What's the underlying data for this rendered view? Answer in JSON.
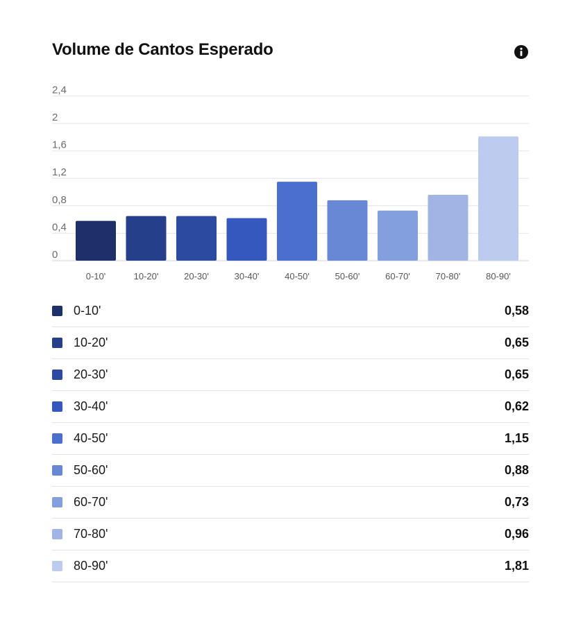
{
  "header": {
    "title": "Volume de Cantos Esperado",
    "info_icon": "info-icon"
  },
  "chart_data": {
    "type": "bar",
    "categories": [
      "0-10'",
      "10-20'",
      "20-30'",
      "30-40'",
      "40-50'",
      "50-60'",
      "60-70'",
      "70-80'",
      "80-90'"
    ],
    "values": [
      0.58,
      0.65,
      0.65,
      0.62,
      1.15,
      0.88,
      0.73,
      0.96,
      1.81
    ],
    "value_labels": [
      "0,58",
      "0,65",
      "0,65",
      "0,62",
      "1,15",
      "0,88",
      "0,73",
      "0,96",
      "1,81"
    ],
    "colors": [
      "#1f3068",
      "#263f8a",
      "#2b4aa0",
      "#3558bf",
      "#4a6fce",
      "#6888d6",
      "#849fdd",
      "#a2b4e4",
      "#bccbee"
    ],
    "ylim": [
      0,
      2.4
    ],
    "yticks": [
      0,
      0.4,
      0.8,
      1.2,
      1.6,
      2,
      2.4
    ],
    "ytick_labels": [
      "0",
      "0,4",
      "0,8",
      "1,2",
      "1,6",
      "2",
      "2,4"
    ],
    "grid": true,
    "title": "Volume de Cantos Esperado",
    "xlabel": "",
    "ylabel": ""
  }
}
